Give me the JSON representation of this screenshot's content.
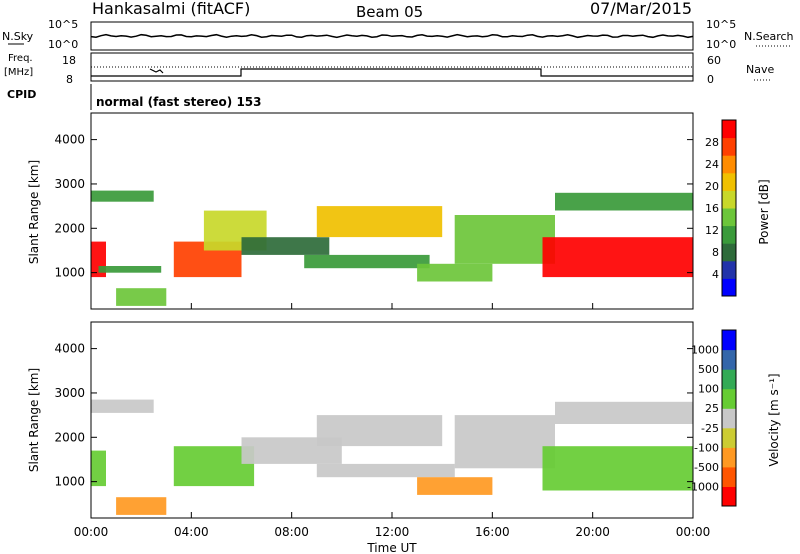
{
  "header": {
    "station": "Hankasalmi (fitACF)",
    "beam": "Beam 05",
    "date": "07/Mar/2015"
  },
  "top_panels": {
    "nsky_label": "N.Sky",
    "nsearch_label": "N.Search",
    "nsky_ticks": [
      "10^5",
      "10^0"
    ],
    "freq_label_1": "Freq.",
    "freq_label_2": "[MHz]",
    "freq_ticks": [
      "18",
      "8"
    ],
    "nave_label": "Nave",
    "nave_ticks": [
      "60",
      "0"
    ],
    "cpid_label": "CPID",
    "cpid_text": "normal (fast stereo) 153"
  },
  "colorbars": {
    "power": {
      "label": "Power [dB]",
      "ticks": [
        "28",
        "24",
        "20",
        "16",
        "12",
        "8",
        "4"
      ],
      "colors": [
        "#0000ff",
        "#2233aa",
        "#2e6b3a",
        "#3a9a3a",
        "#6cc63a",
        "#c8d82a",
        "#f0c000",
        "#ff8c00",
        "#ff4000",
        "#ff0000"
      ]
    },
    "velocity": {
      "label": "Velocity [m s⁻¹]",
      "ticks": [
        "1000",
        "500",
        "100",
        "25",
        "-25",
        "-100",
        "-500",
        "-1000"
      ],
      "colors": [
        "#ff0000",
        "#ff5500",
        "#ff9922",
        "#cccc33",
        "#c8c8c8",
        "#66cc33",
        "#33aa55",
        "#3366aa",
        "#0000ff"
      ]
    }
  },
  "axes": {
    "ylabel": "Slant Range [km]",
    "yticks": [
      1000,
      2000,
      3000,
      4000
    ],
    "ylim": [
      180,
      4600
    ],
    "xlabel": "Time UT",
    "xticks": [
      "00:00",
      "04:00",
      "08:00",
      "12:00",
      "16:00",
      "20:00",
      "00:00"
    ],
    "xlim_hours": [
      0,
      24
    ]
  },
  "chart_data": [
    {
      "type": "heatmap",
      "title": "Power [dB]",
      "ylabel": "Slant Range [km]",
      "xlabel": "Time UT",
      "x_unit": "hours UT",
      "zlim": [
        0,
        30
      ],
      "regions": [
        {
          "t": [
            0.0,
            0.6
          ],
          "r": [
            900,
            1700
          ],
          "value": 28
        },
        {
          "t": [
            0.0,
            2.5
          ],
          "r": [
            2600,
            2850
          ],
          "value": 10
        },
        {
          "t": [
            0.3,
            2.8
          ],
          "r": [
            1000,
            1150
          ],
          "value": 10
        },
        {
          "t": [
            1.0,
            3.0
          ],
          "r": [
            250,
            650
          ],
          "value": 14
        },
        {
          "t": [
            3.3,
            6.0
          ],
          "r": [
            900,
            1700
          ],
          "value": 24
        },
        {
          "t": [
            4.5,
            7.0
          ],
          "r": [
            1500,
            2400
          ],
          "value": 16
        },
        {
          "t": [
            6.0,
            9.5
          ],
          "r": [
            1400,
            1800
          ],
          "value": 8
        },
        {
          "t": [
            8.5,
            13.5
          ],
          "r": [
            1100,
            1400
          ],
          "value": 10
        },
        {
          "t": [
            9.0,
            14.0
          ],
          "r": [
            1800,
            2500
          ],
          "value": 18
        },
        {
          "t": [
            13.0,
            16.0
          ],
          "r": [
            800,
            1200
          ],
          "value": 12
        },
        {
          "t": [
            14.5,
            18.5
          ],
          "r": [
            1200,
            2300
          ],
          "value": 14
        },
        {
          "t": [
            18.0,
            24.0
          ],
          "r": [
            900,
            1800
          ],
          "value": 28
        },
        {
          "t": [
            18.5,
            24.0
          ],
          "r": [
            2400,
            2800
          ],
          "value": 10
        }
      ]
    },
    {
      "type": "heatmap",
      "title": "Velocity [m s⁻¹]",
      "ylabel": "Slant Range [km]",
      "xlabel": "Time UT",
      "x_unit": "hours UT",
      "zlim": [
        -1000,
        1000
      ],
      "regions": [
        {
          "t": [
            0.0,
            2.5
          ],
          "r": [
            2550,
            2850
          ],
          "value": 0
        },
        {
          "t": [
            0.0,
            0.6
          ],
          "r": [
            900,
            1700
          ],
          "value": 60
        },
        {
          "t": [
            1.0,
            3.0
          ],
          "r": [
            250,
            650
          ],
          "value": -200
        },
        {
          "t": [
            3.3,
            6.5
          ],
          "r": [
            900,
            1800
          ],
          "value": 80
        },
        {
          "t": [
            6.0,
            10.0
          ],
          "r": [
            1400,
            2000
          ],
          "value": 0
        },
        {
          "t": [
            9.0,
            14.5
          ],
          "r": [
            1100,
            1400
          ],
          "value": 0
        },
        {
          "t": [
            9.0,
            14.0
          ],
          "r": [
            1800,
            2500
          ],
          "value": 0
        },
        {
          "t": [
            13.0,
            16.0
          ],
          "r": [
            700,
            1100
          ],
          "value": -300
        },
        {
          "t": [
            14.5,
            18.5
          ],
          "r": [
            1300,
            2500
          ],
          "value": 0
        },
        {
          "t": [
            18.0,
            24.0
          ],
          "r": [
            800,
            1800
          ],
          "value": 50
        },
        {
          "t": [
            18.5,
            24.0
          ],
          "r": [
            2300,
            2800
          ],
          "value": 0
        }
      ]
    }
  ]
}
